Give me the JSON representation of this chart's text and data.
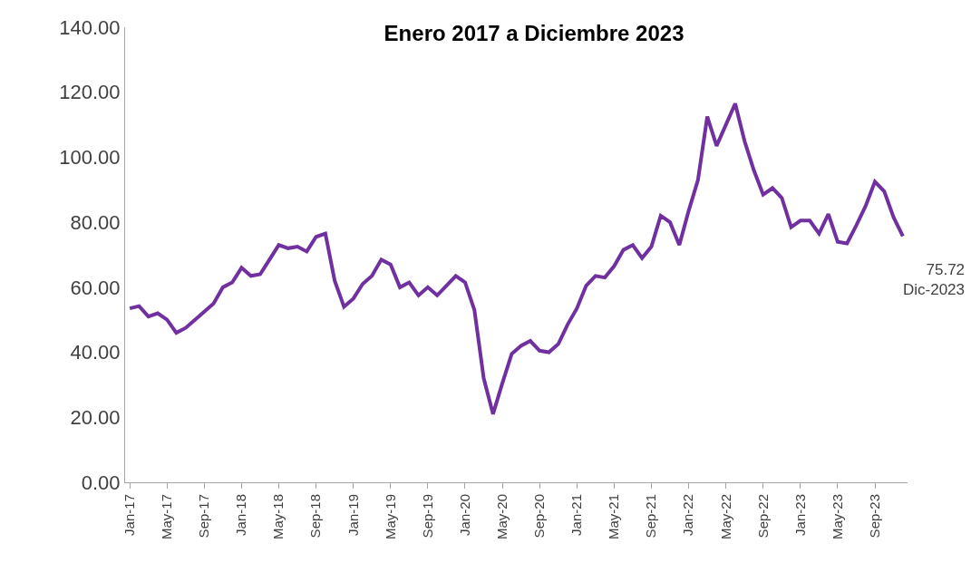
{
  "chart_data": {
    "type": "line",
    "title": "Enero 2017 a Diciembre 2023",
    "categories": [
      "Jan-17",
      null,
      null,
      null,
      "May-17",
      null,
      null,
      null,
      "Sep-17",
      null,
      null,
      null,
      "Jan-18",
      null,
      null,
      null,
      "May-18",
      null,
      null,
      null,
      "Sep-18",
      null,
      null,
      null,
      "Jan-19",
      null,
      null,
      null,
      "May-19",
      null,
      null,
      null,
      "Sep-19",
      null,
      null,
      null,
      "Jan-20",
      null,
      null,
      null,
      "May-20",
      null,
      null,
      null,
      "Sep-20",
      null,
      null,
      null,
      "Jan-21",
      null,
      null,
      null,
      "May-21",
      null,
      null,
      null,
      "Sep-21",
      null,
      null,
      null,
      "Jan-22",
      null,
      null,
      null,
      "May-22",
      null,
      null,
      null,
      "Sep-22",
      null,
      null,
      null,
      "Jan-23",
      null,
      null,
      null,
      "May-23",
      null,
      null,
      null,
      "Sep-23",
      null,
      null,
      null
    ],
    "series": [
      {
        "color": "#7030a0",
        "values": [
          53.5,
          54.2,
          51,
          52,
          50,
          46,
          47.5,
          50,
          52.5,
          55,
          60,
          61.5,
          66,
          63.5,
          64,
          68.5,
          73,
          72,
          72.5,
          71,
          75.5,
          76.5,
          62,
          54,
          56.5,
          61,
          63.5,
          68.5,
          67,
          60,
          61.5,
          57.5,
          60,
          57.5,
          60.5,
          63.5,
          61.5,
          53,
          32,
          21,
          30.5,
          39.5,
          42,
          43.5,
          40.5,
          40,
          42.5,
          48.5,
          53.5,
          60.5,
          63.5,
          63,
          66.5,
          71.5,
          73,
          69,
          72.5,
          82,
          80,
          73,
          83.5,
          93,
          112.5,
          103.5,
          110,
          116.5,
          105,
          96,
          88.5,
          90.5,
          87.5,
          78.5,
          80.5,
          80.5,
          76.5,
          82.5,
          74,
          73.5,
          79,
          85,
          92.5,
          89.5,
          81.5,
          75.72
        ]
      }
    ],
    "ylim": [
      0,
      140
    ],
    "yticks": [
      {
        "value": 0,
        "label": "0.00"
      },
      {
        "value": 20,
        "label": "20.00"
      },
      {
        "value": 40,
        "label": "40.00"
      },
      {
        "value": 60,
        "label": "60.00"
      },
      {
        "value": 80,
        "label": "80.00"
      },
      {
        "value": 100,
        "label": "100.00"
      },
      {
        "value": 120,
        "label": "120.00"
      },
      {
        "value": 140,
        "label": "140.00"
      }
    ],
    "marker": "none",
    "line_style": "solid",
    "annotations": [
      "75.72\nDic-2023"
    ]
  }
}
